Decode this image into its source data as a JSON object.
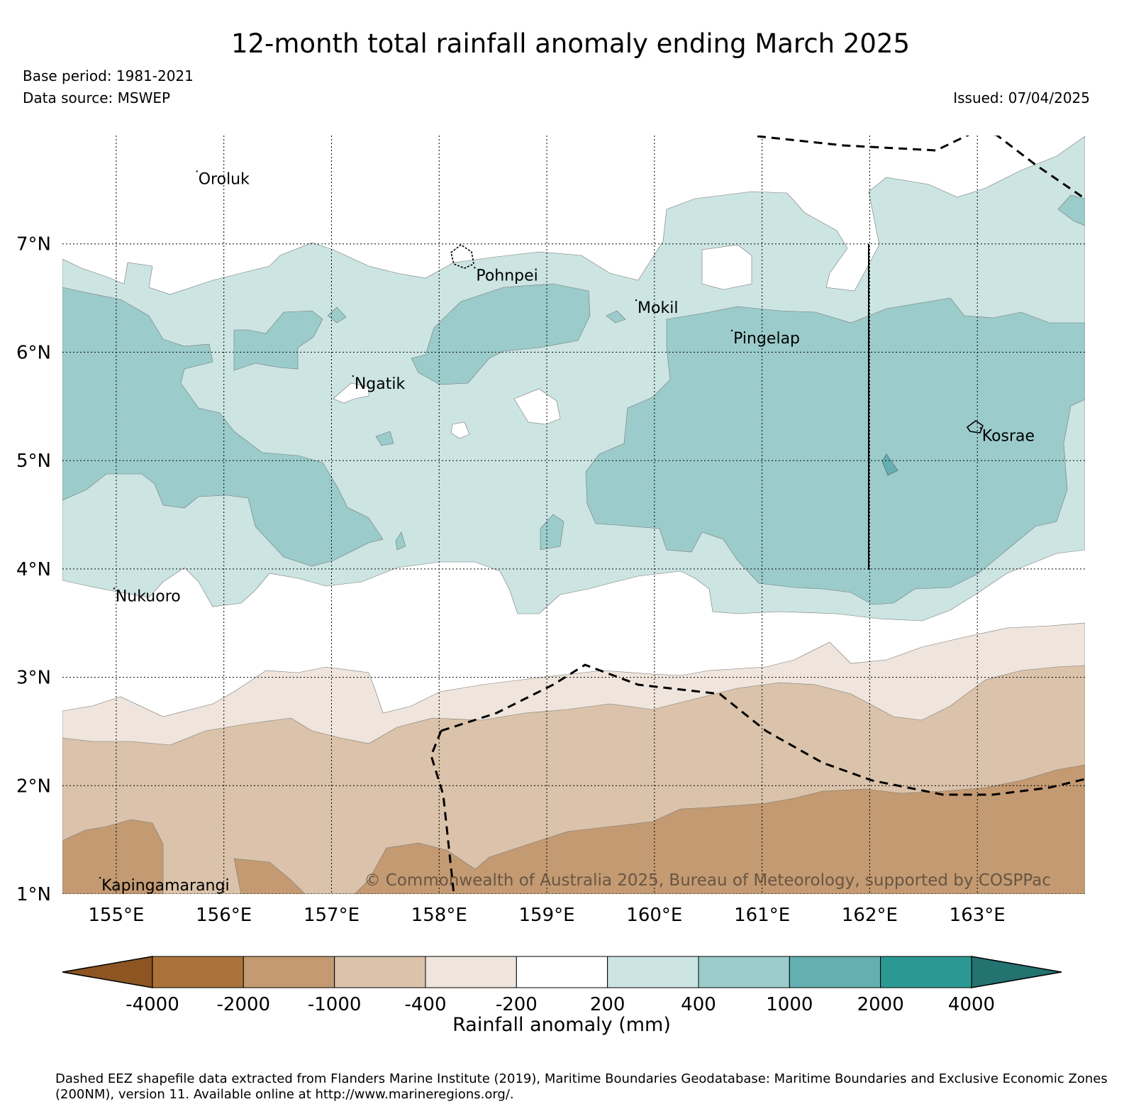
{
  "title": "12-month total rainfall anomaly ending March 2025",
  "base_period": "Base period: 1981-2021",
  "data_source": "Data source: MSWEP",
  "issued": "Issued: 07/04/2025",
  "copyright": "© Commonwealth of Australia 2025, Bureau of Meteorology, supported by COSPPac",
  "footnote": "Dashed EEZ shapefile data extracted from Flanders Marine Institute (2019), Maritime Boundaries Geodatabase: Maritime Boundaries and Exclusive Economic Zones (200NM), version 11. Available online at http://www.marineregions.org/.",
  "map": {
    "lon_range": [
      154.5,
      164.0
    ],
    "lat_range": [
      1.0,
      8.0
    ],
    "lat_ticks": [
      {
        "value": 1,
        "label": "1°N"
      },
      {
        "value": 2,
        "label": "2°N"
      },
      {
        "value": 3,
        "label": "3°N"
      },
      {
        "value": 4,
        "label": "4°N"
      },
      {
        "value": 5,
        "label": "5°N"
      },
      {
        "value": 6,
        "label": "6°N"
      },
      {
        "value": 7,
        "label": "7°N"
      }
    ],
    "lon_ticks": [
      {
        "value": 155,
        "label": "155°E"
      },
      {
        "value": 156,
        "label": "156°E"
      },
      {
        "value": 157,
        "label": "157°E"
      },
      {
        "value": 158,
        "label": "158°E"
      },
      {
        "value": 159,
        "label": "159°E"
      },
      {
        "value": 160,
        "label": "160°E"
      },
      {
        "value": 161,
        "label": "161°E"
      },
      {
        "value": 162,
        "label": "162°E"
      },
      {
        "value": 163,
        "label": "163°E"
      }
    ],
    "places": [
      {
        "name": "Oroluk",
        "lon": 155.75,
        "lat": 7.67
      },
      {
        "name": "Pohnpei",
        "lon": 158.33,
        "lat": 6.78
      },
      {
        "name": "Mokil",
        "lon": 159.83,
        "lat": 6.48
      },
      {
        "name": "Pingelap",
        "lon": 160.72,
        "lat": 6.2
      },
      {
        "name": "Ngatik",
        "lon": 157.2,
        "lat": 5.78
      },
      {
        "name": "Kosrae",
        "lon": 163.03,
        "lat": 5.3
      },
      {
        "name": "Nukuoro",
        "lon": 154.98,
        "lat": 3.82
      },
      {
        "name": "Kapingamarangi",
        "lon": 154.85,
        "lat": 1.15
      }
    ],
    "colors": {
      "lt_-4000": "#8c5522",
      "-4000_-2000": "#ab7339",
      "-2000_-1000": "#c39a72",
      "-1000_-400": "#dac3aa",
      "-400_-200": "#efe5dc",
      "-200_200": "#ffffff",
      "200_400": "#cce5e3",
      "400_1000": "#9bcbcb",
      "1000_2000": "#64b0b0",
      "2000_4000": "#2b9893",
      "gt_4000": "#237371"
    }
  },
  "colorbar": {
    "title": "Rainfall anomaly (mm)",
    "boundaries": [
      "-4000",
      "-2000",
      "-1000",
      "-400",
      "-200",
      "200",
      "400",
      "1000",
      "2000",
      "4000"
    ],
    "colors": [
      "#ab7339",
      "#c39a72",
      "#dac3aa",
      "#efe5dc",
      "#ffffff",
      "#cce5e3",
      "#9bcbcb",
      "#64b0b0",
      "#2b9893"
    ],
    "under_color": "#8c5522",
    "over_color": "#237371"
  }
}
